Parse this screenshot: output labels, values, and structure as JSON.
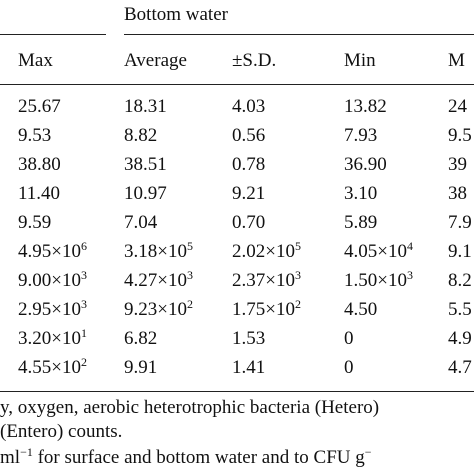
{
  "header": {
    "group_label": "Bottom water",
    "columns": [
      "Max",
      "Average",
      "±S.D.",
      "Min",
      "M"
    ]
  },
  "rows": [
    [
      {
        "t": "25.67"
      },
      {
        "t": "18.31"
      },
      {
        "t": "4.03"
      },
      {
        "t": "13.82"
      },
      {
        "t": "24"
      }
    ],
    [
      {
        "t": "9.53"
      },
      {
        "t": "8.82"
      },
      {
        "t": "0.56"
      },
      {
        "t": "7.93"
      },
      {
        "t": "9.5"
      }
    ],
    [
      {
        "t": "38.80"
      },
      {
        "t": "38.51"
      },
      {
        "t": "0.78"
      },
      {
        "t": "36.90"
      },
      {
        "t": "39"
      }
    ],
    [
      {
        "t": "11.40"
      },
      {
        "t": "10.97"
      },
      {
        "t": "9.21"
      },
      {
        "t": "3.10"
      },
      {
        "t": "38"
      }
    ],
    [
      {
        "t": "9.59"
      },
      {
        "t": "7.04"
      },
      {
        "t": "0.70"
      },
      {
        "t": "5.89"
      },
      {
        "t": "7.9"
      }
    ],
    [
      {
        "t": "4.95×10",
        "e": "6"
      },
      {
        "t": "3.18×10",
        "e": "5"
      },
      {
        "t": "2.02×10",
        "e": "5"
      },
      {
        "t": "4.05×10",
        "e": "4"
      },
      {
        "t": "9.1"
      }
    ],
    [
      {
        "t": "9.00×10",
        "e": "3"
      },
      {
        "t": "4.27×10",
        "e": "3"
      },
      {
        "t": "2.37×10",
        "e": "3"
      },
      {
        "t": "1.50×10",
        "e": "3"
      },
      {
        "t": "8.2"
      }
    ],
    [
      {
        "t": "2.95×10",
        "e": "3"
      },
      {
        "t": "9.23×10",
        "e": "2"
      },
      {
        "t": "1.75×10",
        "e": "2"
      },
      {
        "t": "4.50"
      },
      {
        "t": "5.5"
      }
    ],
    [
      {
        "t": "3.20×10",
        "e": "1"
      },
      {
        "t": "6.82"
      },
      {
        "t": "1.53"
      },
      {
        "t": "0"
      },
      {
        "t": "4.9"
      }
    ],
    [
      {
        "t": "4.55×10",
        "e": "2"
      },
      {
        "t": "9.91"
      },
      {
        "t": "1.41"
      },
      {
        "t": "0"
      },
      {
        "t": "4.7"
      }
    ]
  ],
  "footnotes": {
    "line1": "y, oxygen, aerobic heterotrophic bacteria (Hetero)",
    "line2": "(Entero) counts.",
    "line3_pre": "ml",
    "line3_exp": "−1",
    "line3_mid": " for surface and bottom water and to CFU g",
    "line3_exp2": "−"
  }
}
